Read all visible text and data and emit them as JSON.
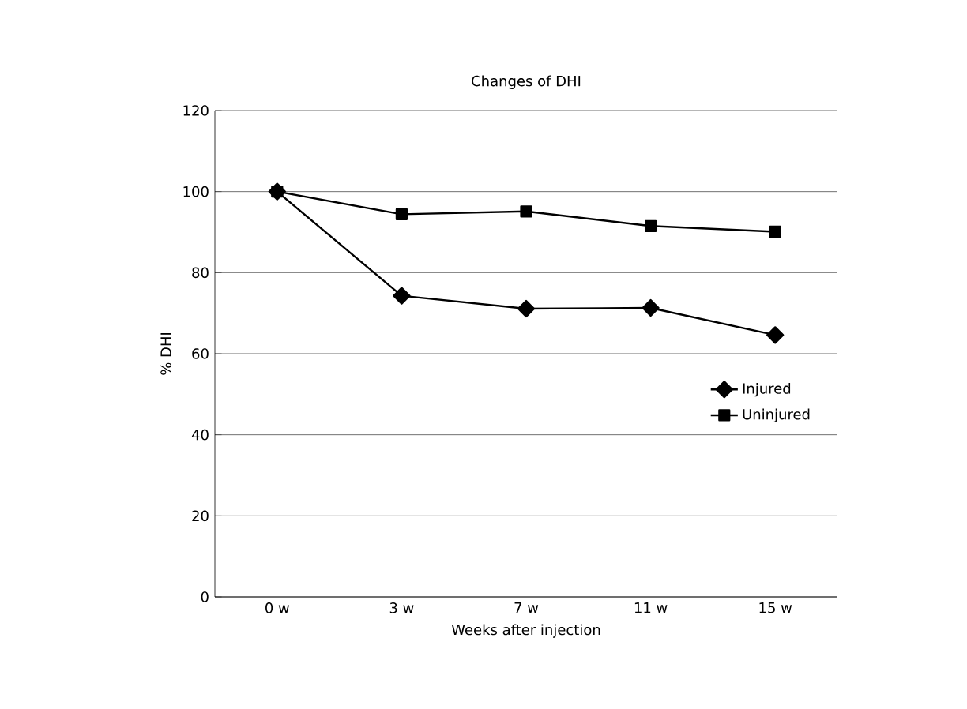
{
  "chart_data": {
    "type": "line",
    "title": "Changes of DHI",
    "xlabel": "Weeks after injection",
    "ylabel": "% DHI",
    "categories": [
      "0 w",
      "3 w",
      "7 w",
      "11 w",
      "15 w"
    ],
    "series": [
      {
        "name": "Injured",
        "color": "#000000",
        "marker": "diamond",
        "values": [
          100,
          74.3,
          71.1,
          71.3,
          64.6
        ]
      },
      {
        "name": "Uninjured",
        "color": "#000000",
        "marker": "square",
        "values": [
          100,
          94.4,
          95.1,
          91.5,
          90.1
        ]
      }
    ],
    "ylim": [
      0,
      120
    ],
    "yticks": [
      0,
      20,
      40,
      60,
      80,
      100,
      120
    ],
    "grid": "y",
    "legend": "right",
    "line_style": "solid"
  }
}
